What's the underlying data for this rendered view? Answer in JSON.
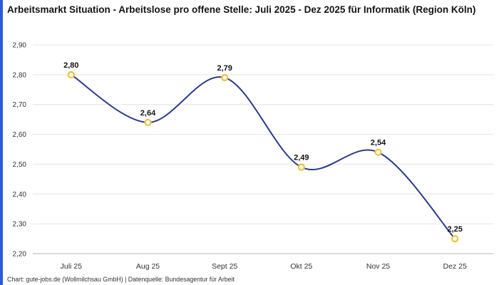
{
  "accent_color": "#2a5bd7",
  "header": {
    "title": "Arbeitsmarkt Situation - Arbeitslose pro offene Stelle: Juli 2025 - Dez 2025 für Informatik (Region Köln)"
  },
  "footer": {
    "caption": "Chart: gute-jobs.de (Wollmilchsau GmbH) | Datenquelle: Bundesagentur für Arbeit"
  },
  "chart_data": {
    "type": "line",
    "title": "Arbeitsmarkt Situation - Arbeitslose pro offene Stelle: Juli 2025 - Dez 2025 für Informatik (Region Köln)",
    "categories": [
      "Juli 25",
      "Aug 25",
      "Sept 25",
      "Okt 25",
      "Nov 25",
      "Dez 25"
    ],
    "values": [
      2.8,
      2.64,
      2.79,
      2.49,
      2.54,
      2.25
    ],
    "value_labels": [
      "2,80",
      "2,64",
      "2,79",
      "2,49",
      "2,54",
      "2,25"
    ],
    "xlabel": "",
    "ylabel": "",
    "ylim": [
      2.2,
      2.9
    ],
    "ytick_step": 0.1,
    "ytick_labels": [
      "2,20",
      "2,30",
      "2,40",
      "2,50",
      "2,60",
      "2,70",
      "2,80",
      "2,90"
    ],
    "grid": "horizontal",
    "legend": "none",
    "smooth": true,
    "line_color": "#2b3a8c",
    "marker_stroke_color": "#eec33d",
    "marker_fill_color": "#ffffff",
    "gridline_color": "#e4e4e4",
    "axis_line_color": "#b5b5b5",
    "tick_label_color": "#333333",
    "data_label_color": "#111111"
  }
}
